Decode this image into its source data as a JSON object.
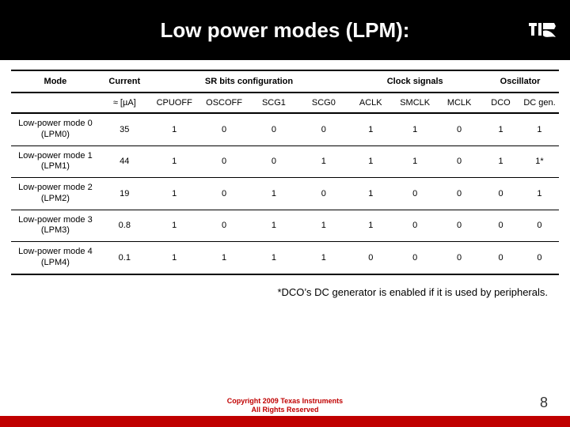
{
  "title": "Low power modes (LPM):",
  "logo_color": "#ffffff",
  "table": {
    "group_headers": [
      "Mode",
      "Current",
      "SR bits configuration",
      "Clock signals",
      "Oscillator"
    ],
    "sub_headers": [
      "",
      "≈ [µA]",
      "CPUOFF",
      "OSCOFF",
      "SCG1",
      "SCG0",
      "ACLK",
      "SMCLK",
      "MCLK",
      "DCO",
      "DC gen."
    ],
    "rows": [
      {
        "mode_l1": "Low-power mode 0",
        "mode_l2": "(LPM0)",
        "cells": [
          "35",
          "1",
          "0",
          "0",
          "0",
          "1",
          "1",
          "0",
          "1",
          "1"
        ]
      },
      {
        "mode_l1": "Low-power mode 1",
        "mode_l2": "(LPM1)",
        "cells": [
          "44",
          "1",
          "0",
          "0",
          "1",
          "1",
          "1",
          "0",
          "1",
          "1*"
        ]
      },
      {
        "mode_l1": "Low-power mode 2",
        "mode_l2": "(LPM2)",
        "cells": [
          "19",
          "1",
          "0",
          "1",
          "0",
          "1",
          "0",
          "0",
          "0",
          "1"
        ]
      },
      {
        "mode_l1": "Low-power mode 3",
        "mode_l2": "(LPM3)",
        "cells": [
          "0.8",
          "1",
          "0",
          "1",
          "1",
          "1",
          "0",
          "0",
          "0",
          "0"
        ]
      },
      {
        "mode_l1": "Low-power mode 4",
        "mode_l2": "(LPM4)",
        "cells": [
          "0.1",
          "1",
          "1",
          "1",
          "1",
          "0",
          "0",
          "0",
          "0",
          "0"
        ]
      }
    ]
  },
  "footnote": "*DCO’s DC generator is enabled if it is used by peripherals.",
  "footer": {
    "line1": "Copyright 2009 Texas Instruments",
    "line2": "All Rights Reserved",
    "bar_color": "#c00000",
    "text_color": "#c00000"
  },
  "page_number": "8"
}
